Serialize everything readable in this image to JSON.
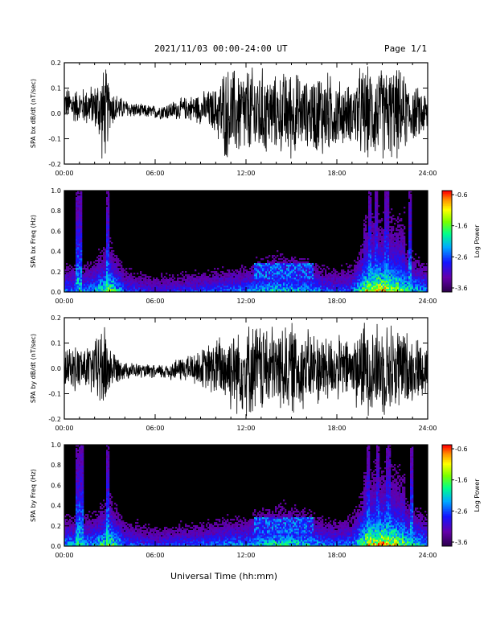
{
  "header": {
    "title": "2021/11/03  00:00-24:00 UT",
    "page": "Page 1/1"
  },
  "xaxis_label": "Universal Time (hh:mm)",
  "colors": {
    "trace": "#000000",
    "spectrogram_background": "#000000",
    "colorbar": [
      "#2a0040",
      "#5a00a0",
      "#0000ff",
      "#00c8ff",
      "#00ff80",
      "#80ff00",
      "#ffff00",
      "#ff8000",
      "#ff0000"
    ]
  },
  "chart_data": [
    {
      "type": "line",
      "panel": "SPA bx dB/dt",
      "ylabel": "SPA bx dB/dt (nT/sec)",
      "xlabel": "",
      "xlim": [
        0,
        24
      ],
      "ylim": [
        -0.2,
        0.2
      ],
      "x_ticks": [
        "00:00",
        "06:00",
        "12:00",
        "18:00",
        "24:00"
      ],
      "y_ticks": [
        "-0.2",
        "-0.1",
        "0.0",
        "0.1",
        "0.2"
      ],
      "series": [
        {
          "x": [
            0,
            0.5,
            1,
            1.5,
            2,
            2.5,
            2.75,
            3,
            3.5,
            4,
            5,
            6,
            7,
            8,
            9,
            10,
            10.5,
            11,
            12,
            13,
            14,
            15,
            16,
            17,
            18,
            19,
            19.5,
            20,
            21,
            22,
            23,
            24
          ],
          "envelope": [
            0.07,
            0.08,
            0.07,
            0.09,
            0.09,
            0.2,
            0.2,
            0.1,
            0.06,
            0.04,
            0.03,
            0.03,
            0.04,
            0.05,
            0.07,
            0.1,
            0.2,
            0.2,
            0.2,
            0.2,
            0.16,
            0.2,
            0.14,
            0.2,
            0.15,
            0.12,
            0.2,
            0.2,
            0.2,
            0.2,
            0.12,
            0.1
          ],
          "offset": [
            0.04,
            0.03,
            0.03,
            0.03,
            0.03,
            0.0,
            0.0,
            0.03,
            0.02,
            0.02,
            0.01,
            0.005,
            0.01,
            0.02,
            0.02,
            0.01,
            0.0,
            0.0,
            0.0,
            0.0,
            0.0,
            0.0,
            0.0,
            0.0,
            0.0,
            0.0,
            0.0,
            0.0,
            0.0,
            0.0,
            0.0,
            0.0
          ]
        }
      ]
    },
    {
      "type": "heatmap",
      "panel": "SPA bx Freq",
      "ylabel": "SPA bx Freq (Hz)",
      "xlabel": "",
      "xlim": [
        0,
        24
      ],
      "ylim": [
        0.0,
        1.0
      ],
      "x_ticks": [
        "00:00",
        "06:00",
        "12:00",
        "18:00",
        "24:00"
      ],
      "y_ticks": [
        "0.0",
        "0.2",
        "0.4",
        "0.6",
        "0.8",
        "1.0"
      ],
      "colorbar": {
        "label": "Log Power",
        "ticks": [
          "-0.6",
          "-1.6",
          "-2.6",
          "-3.6"
        ],
        "range": [
          -3.6,
          -0.6
        ]
      },
      "activity_hours": [
        0,
        1,
        2,
        3,
        4,
        6,
        8,
        10,
        11,
        12,
        13,
        14,
        15,
        16,
        17,
        18,
        19,
        20,
        21,
        22,
        23,
        24
      ],
      "activity_level": [
        0.5,
        0.45,
        0.55,
        0.8,
        0.4,
        0.3,
        0.35,
        0.4,
        0.45,
        0.45,
        0.55,
        0.6,
        0.6,
        0.55,
        0.45,
        0.4,
        0.45,
        0.9,
        0.95,
        0.85,
        0.6,
        0.5
      ],
      "bright_columns_hours": [
        0.9,
        1.1,
        2.9,
        20.2,
        20.6,
        21.3,
        22.8
      ]
    },
    {
      "type": "line",
      "panel": "SPA by dB/dt",
      "ylabel": "SPA by dB/dt (nT/sec)",
      "xlabel": "",
      "xlim": [
        0,
        24
      ],
      "ylim": [
        -0.2,
        0.2
      ],
      "x_ticks": [
        "00:00",
        "06:00",
        "12:00",
        "18:00",
        "24:00"
      ],
      "y_ticks": [
        "-0.2",
        "-0.1",
        "0.0",
        "0.1",
        "0.2"
      ],
      "series": [
        {
          "x": [
            0,
            0.5,
            1,
            1.5,
            2,
            2.5,
            2.75,
            3,
            3.5,
            4,
            5,
            6,
            7,
            8,
            9,
            10,
            10.5,
            11,
            12,
            13,
            14,
            15,
            16,
            17,
            18,
            19,
            19.5,
            20,
            21,
            22,
            23,
            24
          ],
          "envelope": [
            0.08,
            0.09,
            0.1,
            0.1,
            0.12,
            0.2,
            0.2,
            0.1,
            0.06,
            0.04,
            0.03,
            0.03,
            0.04,
            0.06,
            0.08,
            0.13,
            0.16,
            0.18,
            0.2,
            0.2,
            0.18,
            0.2,
            0.17,
            0.16,
            0.14,
            0.13,
            0.2,
            0.2,
            0.2,
            0.2,
            0.14,
            0.12
          ],
          "offset": [
            0.0,
            0.0,
            0.0,
            0.0,
            0.0,
            0.0,
            0.0,
            0.0,
            0.0,
            -0.005,
            -0.01,
            -0.015,
            -0.01,
            0.0,
            0.0,
            0.0,
            0.0,
            0.0,
            0.0,
            0.0,
            0.0,
            0.0,
            0.0,
            0.0,
            0.0,
            0.0,
            0.0,
            0.0,
            0.0,
            0.0,
            0.0,
            0.0
          ]
        }
      ]
    },
    {
      "type": "heatmap",
      "panel": "SPA by Freq",
      "ylabel": "SPA by Freq (Hz)",
      "xlabel": "Universal Time (hh:mm)",
      "xlim": [
        0,
        24
      ],
      "ylim": [
        0.0,
        1.0
      ],
      "x_ticks": [
        "00:00",
        "06:00",
        "12:00",
        "18:00",
        "24:00"
      ],
      "y_ticks": [
        "0.0",
        "0.2",
        "0.4",
        "0.6",
        "0.8",
        "1.0"
      ],
      "colorbar": {
        "label": "Log Power",
        "ticks": [
          "-0.6",
          "-1.6",
          "-2.6",
          "-3.6"
        ],
        "range": [
          -3.6,
          -0.6
        ]
      },
      "activity_hours": [
        0,
        1,
        2,
        3,
        4,
        6,
        8,
        10,
        11,
        12,
        13,
        14,
        15,
        16,
        17,
        18,
        19,
        20,
        21,
        22,
        23,
        24
      ],
      "activity_level": [
        0.55,
        0.5,
        0.55,
        0.8,
        0.45,
        0.35,
        0.4,
        0.45,
        0.5,
        0.5,
        0.6,
        0.65,
        0.65,
        0.6,
        0.5,
        0.45,
        0.5,
        0.95,
        1.0,
        0.9,
        0.65,
        0.55
      ],
      "bright_columns_hours": [
        0.9,
        1.2,
        2.9,
        20.1,
        20.7,
        21.4,
        22.9
      ]
    }
  ]
}
